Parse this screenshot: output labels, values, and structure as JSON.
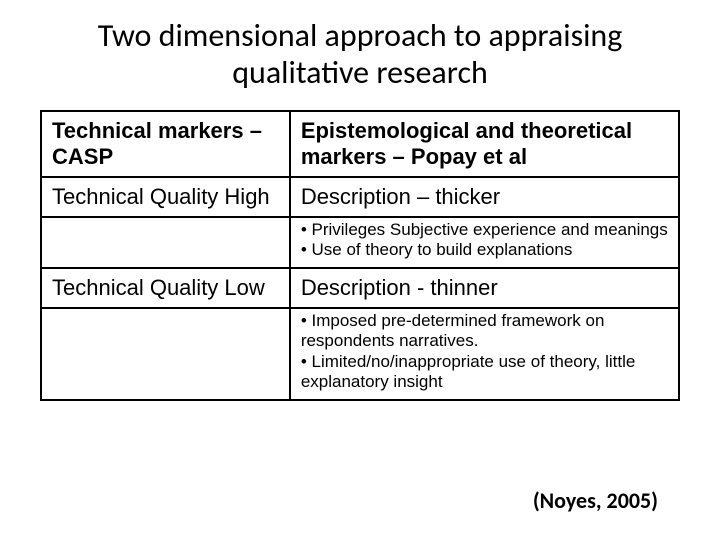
{
  "title": "Two dimensional approach to appraising qualitative research",
  "table": {
    "columns": {
      "left_width_pct": 39,
      "right_width_pct": 61
    },
    "border_color": "#000000",
    "background_color": "#ffffff",
    "header": {
      "left": "Technical markers – CASP",
      "right": "Epistemological and theoretical markers – Popay et al",
      "fontsize": 22,
      "font_weight": "bold"
    },
    "rows": [
      {
        "left": "Technical Quality High",
        "right": "Description – thicker",
        "bullets": "• Privileges Subjective experience and meanings\n• Use of theory to build explanations"
      },
      {
        "left": "Technical Quality Low",
        "right": "Description - thinner",
        "bullets": "• Imposed pre-determined framework on respondents narratives.\n• Limited/no/inappropriate use of theory, little explanatory insight"
      }
    ],
    "row_fontsize": 22,
    "bullet_fontsize": 17
  },
  "citation": "(Noyes, 2005)",
  "colors": {
    "text": "#000000",
    "background": "#ffffff"
  },
  "fonts": {
    "title_family": "Calibri",
    "body_family": "Arial",
    "title_size_pt": 32,
    "citation_size_pt": 22
  }
}
